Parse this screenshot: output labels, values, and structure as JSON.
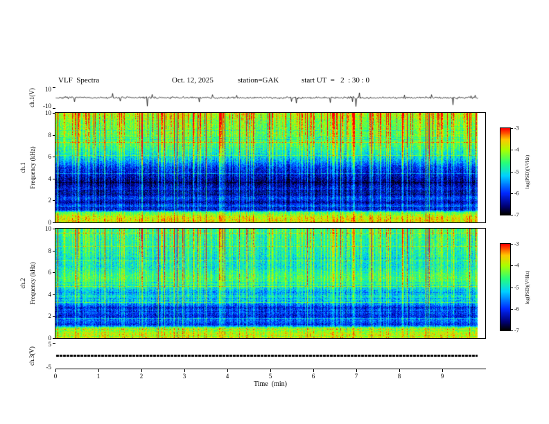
{
  "header": {
    "title": "VLF  Spectra",
    "date": "Oct. 12, 2025",
    "station": "station=GAK",
    "start_ut": "start UT  =   2  : 30 : 0"
  },
  "x_axis": {
    "label": "Time  (min)",
    "min": 0,
    "max": 10,
    "tick_labels": [
      "0",
      "1",
      "2",
      "3",
      "4",
      "5",
      "6",
      "7",
      "8",
      "9"
    ],
    "data_end_min": 9.83
  },
  "colorbar": {
    "label": "log(PSD)(V²/Hz)",
    "min": -7,
    "max": -3,
    "tick_labels": [
      "-3",
      "-4",
      "-5",
      "-6",
      "-7"
    ],
    "colormap": {
      "positions": [
        0,
        0.1,
        0.25,
        0.45,
        0.6,
        0.75,
        0.87,
        1
      ],
      "colors": [
        "#000000",
        "#000078",
        "#0028ff",
        "#00d2ff",
        "#28ff78",
        "#aaff00",
        "#ffc800",
        "#ff0000"
      ]
    }
  },
  "chart_data": [
    {
      "id": "ch1_waveform",
      "type": "line",
      "ylabel": "ch.1(V)",
      "ylim": [
        -10,
        10
      ],
      "ytick_labels": [
        "10",
        "-10"
      ],
      "x_range_min": [
        0,
        9.83
      ],
      "baseline_v": 0,
      "noise_v_rms": 0.5,
      "spikes": {
        "prob_down": 0.025,
        "prob_up": 0.015,
        "max_down_v": -9.5,
        "max_up_v": 5
      }
    },
    {
      "id": "ch1_spectrogram",
      "type": "heatmap",
      "channel_label": "ch.1",
      "ylabel": "Frequency  (kHz)",
      "ylim": [
        0,
        10
      ],
      "ytick_labels": [
        "0",
        "2",
        "4",
        "6",
        "8",
        "10"
      ],
      "zlim": [
        -7,
        -3
      ],
      "freq_profile": {
        "freq_khz": [
          0,
          0.5,
          0.9,
          1.1,
          1.5,
          1.8,
          2.2,
          2.6,
          3.0,
          3.6,
          4.2,
          5.0,
          5.6,
          6.2,
          7.0,
          8.0,
          9.0,
          9.6,
          10
        ],
        "log_psd": [
          -3.8,
          -4.0,
          -4.6,
          -6.3,
          -5.9,
          -6.6,
          -6.0,
          -6.7,
          -6.3,
          -6.8,
          -6.5,
          -6.2,
          -5.6,
          -5.2,
          -4.8,
          -4.6,
          -4.5,
          -4.3,
          -4.2
        ]
      },
      "streaks": {
        "strong_prob": 0.05,
        "medium_prob": 0.25,
        "top_bias": 0.7,
        "scale": 1.0
      }
    },
    {
      "id": "ch2_spectrogram",
      "type": "heatmap",
      "channel_label": "ch.2",
      "ylabel": "Frequency  (kHz)",
      "ylim": [
        0,
        10
      ],
      "ytick_labels": [
        "0",
        "2",
        "4",
        "6",
        "8",
        "10"
      ],
      "zlim": [
        -7,
        -3
      ],
      "freq_profile": {
        "freq_khz": [
          0,
          0.5,
          0.9,
          1.2,
          1.6,
          2.0,
          2.4,
          2.8,
          3.2,
          3.8,
          4.3,
          4.8,
          5.5,
          6.0,
          6.5,
          7.5,
          8.5,
          9.3,
          10
        ],
        "log_psd": [
          -3.9,
          -4.1,
          -4.8,
          -6.2,
          -5.8,
          -6.3,
          -5.9,
          -6.2,
          -5.5,
          -5.2,
          -5.5,
          -4.9,
          -4.7,
          -4.9,
          -5.2,
          -5.1,
          -5.0,
          -4.9,
          -4.8
        ]
      },
      "streaks": {
        "strong_prob": 0.04,
        "medium_prob": 0.25,
        "top_bias": 0.7,
        "scale": 0.9
      }
    },
    {
      "id": "ch3_waveform",
      "type": "line",
      "ylabel": "ch.3(V)",
      "ylim": [
        -5,
        5
      ],
      "ytick_labels": [
        "5",
        "-5"
      ],
      "value_v": 0,
      "style": "thick-flat-line"
    }
  ]
}
